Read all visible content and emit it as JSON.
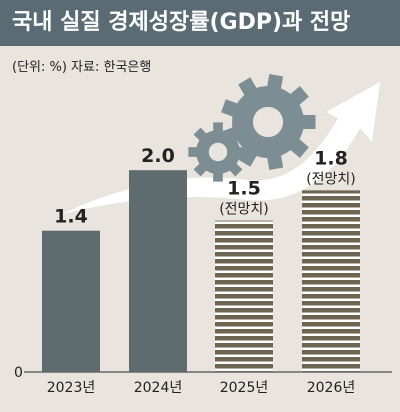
{
  "header": {
    "title": "국내 실질 경제성장률(GDP)과 전망",
    "unit_label": "(단위: %)  자료: 한국은행"
  },
  "colors": {
    "title_bg": "#5a6b73",
    "background": "#e9e5de",
    "actual_bar": "#5e6b6f",
    "forecast_stripe_dark": "#6e6550",
    "forecast_stripe_light": "#ffffff",
    "gear": "#7d8d94"
  },
  "icons": [
    "gear-icon",
    "arrow-icon"
  ],
  "chart_data": {
    "type": "bar",
    "categories": [
      "2023년",
      "2024년",
      "2025년",
      "2026년"
    ],
    "values": [
      1.4,
      2.0,
      1.5,
      1.8
    ],
    "value_labels": [
      "1.4",
      "2.0",
      "1.5",
      "1.8"
    ],
    "forecast": [
      false,
      false,
      true,
      true
    ],
    "forecast_label": "(전망치)",
    "title": "국내 실질 경제성장률(GDP)과 전망",
    "xlabel": "",
    "ylabel": "",
    "y_tick_labels": [
      "0"
    ],
    "ylim": [
      0,
      2.2
    ],
    "grid": false,
    "legend": "none"
  }
}
